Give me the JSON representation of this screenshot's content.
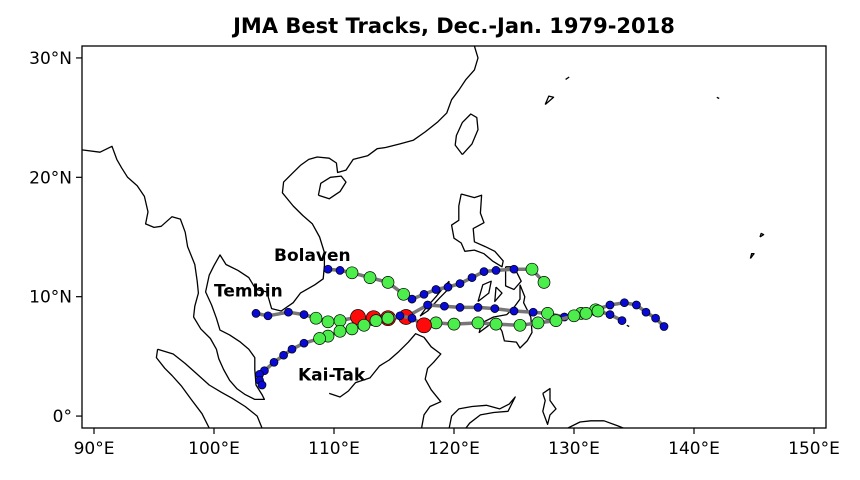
{
  "title": "JMA Best Tracks, Dec.-Jan. 1979-2018",
  "map": {
    "lon_range": [
      89,
      151
    ],
    "lat_range": [
      -1,
      31
    ],
    "x_ticks": [
      {
        "lon": 90,
        "label": "90°E"
      },
      {
        "lon": 100,
        "label": "100°E"
      },
      {
        "lon": 110,
        "label": "110°E"
      },
      {
        "lon": 120,
        "label": "120°E"
      },
      {
        "lon": 130,
        "label": "130°E"
      },
      {
        "lon": 140,
        "label": "140°E"
      },
      {
        "lon": 150,
        "label": "150°E"
      }
    ],
    "y_ticks": [
      {
        "lat": 0,
        "label": "0°"
      },
      {
        "lat": 10,
        "label": "10°N"
      },
      {
        "lat": 20,
        "label": "20°N"
      },
      {
        "lat": 30,
        "label": "30°N"
      }
    ]
  },
  "legend_colors": {
    "blue": "#0a0ad6",
    "green": "#4cee4c",
    "red": "#ff0a0a",
    "track_line": "#777777"
  },
  "storms": [
    {
      "name": "Bolaven",
      "label_at": [
        105.0,
        13.0
      ],
      "track": [
        [
          127.5,
          11.2,
          "g"
        ],
        [
          126.5,
          12.3,
          "g"
        ],
        [
          125.0,
          12.3,
          "b"
        ],
        [
          123.5,
          12.2,
          "b"
        ],
        [
          122.5,
          12.1,
          "b"
        ],
        [
          121.5,
          11.6,
          "b"
        ],
        [
          120.5,
          11.1,
          "b"
        ],
        [
          119.5,
          10.8,
          "b"
        ],
        [
          118.5,
          10.6,
          "b"
        ],
        [
          117.5,
          10.2,
          "b"
        ],
        [
          116.5,
          9.8,
          "b"
        ],
        [
          115.8,
          10.2,
          "g"
        ],
        [
          114.5,
          11.2,
          "g"
        ],
        [
          113.0,
          11.6,
          "g"
        ],
        [
          111.5,
          12.0,
          "g"
        ],
        [
          110.5,
          12.2,
          "b"
        ],
        [
          109.5,
          12.3,
          "b"
        ]
      ]
    },
    {
      "name": "Tembin",
      "label_at": [
        100.0,
        10.0
      ],
      "track": [
        [
          137.5,
          7.5,
          "b"
        ],
        [
          136.8,
          8.2,
          "b"
        ],
        [
          136.0,
          8.7,
          "b"
        ],
        [
          135.2,
          9.3,
          "b"
        ],
        [
          134.2,
          9.5,
          "b"
        ],
        [
          133.0,
          9.3,
          "b"
        ],
        [
          131.8,
          8.9,
          "g"
        ],
        [
          130.6,
          8.6,
          "g"
        ],
        [
          129.2,
          8.3,
          "b"
        ],
        [
          127.8,
          8.6,
          "g"
        ],
        [
          126.6,
          8.7,
          "b"
        ],
        [
          125.0,
          8.8,
          "b"
        ],
        [
          123.4,
          9.0,
          "b"
        ],
        [
          122.0,
          9.1,
          "b"
        ],
        [
          120.5,
          9.1,
          "b"
        ],
        [
          119.2,
          9.2,
          "b"
        ],
        [
          117.8,
          9.3,
          "b"
        ],
        [
          116.0,
          8.3,
          "r"
        ],
        [
          114.5,
          8.2,
          "r"
        ],
        [
          113.3,
          8.2,
          "r"
        ],
        [
          112.0,
          8.3,
          "r"
        ],
        [
          110.5,
          8.0,
          "g"
        ],
        [
          109.5,
          7.9,
          "g"
        ],
        [
          108.5,
          8.2,
          "g"
        ],
        [
          107.5,
          8.5,
          "b"
        ],
        [
          106.2,
          8.7,
          "b"
        ],
        [
          104.5,
          8.4,
          "b"
        ],
        [
          103.5,
          8.6,
          "b"
        ]
      ]
    },
    {
      "name": "Kai-Tak",
      "label_at": [
        107.0,
        3.0
      ],
      "track": [
        [
          134.0,
          8.0,
          "b"
        ],
        [
          133.0,
          8.5,
          "b"
        ],
        [
          132.0,
          8.8,
          "g"
        ],
        [
          131.0,
          8.6,
          "g"
        ],
        [
          130.0,
          8.4,
          "g"
        ],
        [
          128.5,
          8.0,
          "g"
        ],
        [
          127.0,
          7.8,
          "g"
        ],
        [
          125.5,
          7.6,
          "g"
        ],
        [
          123.5,
          7.7,
          "g"
        ],
        [
          122.0,
          7.8,
          "g"
        ],
        [
          120.0,
          7.7,
          "g"
        ],
        [
          118.5,
          7.8,
          "g"
        ],
        [
          117.5,
          7.6,
          "r"
        ],
        [
          116.5,
          8.2,
          "b"
        ],
        [
          115.5,
          8.4,
          "b"
        ],
        [
          114.5,
          8.2,
          "g"
        ],
        [
          113.5,
          8.0,
          "g"
        ],
        [
          112.5,
          7.6,
          "g"
        ],
        [
          111.5,
          7.3,
          "g"
        ],
        [
          110.5,
          7.1,
          "g"
        ],
        [
          109.5,
          6.7,
          "g"
        ],
        [
          108.8,
          6.5,
          "g"
        ],
        [
          107.5,
          6.1,
          "b"
        ],
        [
          106.5,
          5.6,
          "b"
        ],
        [
          105.8,
          5.1,
          "b"
        ],
        [
          105.0,
          4.5,
          "b"
        ],
        [
          104.2,
          3.8,
          "b"
        ],
        [
          103.8,
          3.5,
          "b"
        ],
        [
          103.8,
          3.0,
          "b"
        ],
        [
          104.0,
          2.6,
          "b"
        ]
      ]
    }
  ],
  "land_outlines": [
    [
      [
        89,
        22.3
      ],
      [
        90.5,
        22.1
      ],
      [
        91.5,
        22.6
      ],
      [
        91.9,
        21.5
      ],
      [
        92.3,
        20.8
      ],
      [
        92.8,
        20.0
      ],
      [
        93.6,
        19.3
      ],
      [
        94.2,
        18.4
      ],
      [
        94.5,
        17.1
      ],
      [
        94.3,
        16.1
      ],
      [
        95.0,
        15.8
      ],
      [
        95.6,
        15.9
      ],
      [
        96.5,
        16.7
      ],
      [
        97.2,
        16.5
      ],
      [
        97.6,
        15.4
      ],
      [
        97.8,
        14.2
      ],
      [
        98.4,
        12.7
      ],
      [
        98.6,
        11.3
      ],
      [
        98.7,
        10.3
      ],
      [
        98.4,
        9.2
      ],
      [
        98.3,
        8.3
      ],
      [
        98.9,
        7.3
      ],
      [
        99.7,
        6.5
      ],
      [
        100.2,
        5.6
      ],
      [
        100.4,
        4.8
      ],
      [
        100.8,
        3.9
      ],
      [
        101.3,
        3.0
      ],
      [
        101.9,
        2.3
      ],
      [
        102.6,
        1.8
      ],
      [
        103.4,
        1.4
      ],
      [
        104.2,
        1.4
      ],
      [
        104.0,
        1.8
      ],
      [
        103.5,
        2.6
      ],
      [
        103.4,
        3.9
      ],
      [
        103.4,
        4.9
      ],
      [
        102.9,
        5.6
      ],
      [
        102.2,
        6.2
      ],
      [
        101.3,
        6.8
      ],
      [
        100.5,
        7.2
      ],
      [
        100.2,
        8.2
      ],
      [
        99.8,
        9.3
      ],
      [
        99.3,
        10.4
      ],
      [
        99.6,
        11.8
      ],
      [
        100.0,
        12.6
      ],
      [
        100.5,
        13.5
      ],
      [
        101.0,
        12.7
      ],
      [
        102.0,
        12.2
      ],
      [
        102.9,
        11.6
      ],
      [
        103.5,
        10.6
      ],
      [
        104.4,
        10.4
      ],
      [
        104.8,
        9.0
      ],
      [
        105.6,
        8.8
      ],
      [
        106.6,
        9.5
      ],
      [
        107.2,
        10.3
      ],
      [
        108.4,
        11.0
      ],
      [
        109.1,
        11.5
      ],
      [
        109.2,
        12.6
      ],
      [
        109.2,
        13.7
      ],
      [
        108.8,
        15.0
      ],
      [
        108.2,
        16.1
      ],
      [
        107.4,
        16.8
      ],
      [
        106.6,
        17.6
      ],
      [
        105.7,
        18.7
      ],
      [
        105.8,
        19.6
      ],
      [
        106.5,
        20.3
      ],
      [
        107.2,
        21.0
      ],
      [
        107.9,
        21.5
      ],
      [
        108.6,
        21.7
      ],
      [
        109.6,
        21.6
      ],
      [
        110.2,
        21.2
      ],
      [
        110.3,
        20.4
      ],
      [
        111.0,
        20.6
      ],
      [
        111.6,
        21.5
      ],
      [
        112.8,
        21.8
      ],
      [
        113.6,
        22.4
      ],
      [
        114.3,
        22.5
      ],
      [
        115.5,
        22.8
      ],
      [
        116.6,
        23.1
      ],
      [
        117.6,
        23.8
      ],
      [
        118.6,
        24.6
      ],
      [
        119.4,
        25.4
      ],
      [
        119.8,
        26.5
      ],
      [
        120.4,
        27.3
      ],
      [
        121.0,
        28.2
      ],
      [
        121.7,
        29.0
      ],
      [
        122.0,
        30.0
      ],
      [
        121.7,
        31.0
      ]
    ],
    [
      [
        108.7,
        18.5
      ],
      [
        109.6,
        18.2
      ],
      [
        110.5,
        18.8
      ],
      [
        111.0,
        19.6
      ],
      [
        110.6,
        20.1
      ],
      [
        109.7,
        20.0
      ],
      [
        108.9,
        19.5
      ],
      [
        108.7,
        18.5
      ]
    ],
    [
      [
        120.7,
        21.9
      ],
      [
        121.5,
        22.8
      ],
      [
        122.0,
        24.0
      ],
      [
        121.9,
        25.0
      ],
      [
        121.4,
        25.3
      ],
      [
        120.7,
        24.6
      ],
      [
        120.2,
        23.5
      ],
      [
        120.1,
        22.7
      ],
      [
        120.7,
        21.9
      ]
    ],
    [
      [
        120.6,
        18.6
      ],
      [
        121.7,
        18.3
      ],
      [
        122.3,
        18.5
      ],
      [
        122.2,
        17.0
      ],
      [
        122.5,
        16.2
      ],
      [
        121.6,
        15.7
      ],
      [
        121.7,
        14.6
      ],
      [
        122.6,
        14.2
      ],
      [
        123.4,
        13.8
      ],
      [
        124.1,
        13.0
      ],
      [
        124.0,
        12.5
      ],
      [
        123.2,
        13.0
      ],
      [
        122.5,
        13.6
      ],
      [
        121.7,
        13.9
      ],
      [
        120.9,
        13.8
      ],
      [
        120.6,
        14.5
      ],
      [
        120.0,
        14.9
      ],
      [
        119.8,
        16.0
      ],
      [
        120.4,
        16.4
      ],
      [
        120.4,
        17.6
      ],
      [
        120.6,
        18.6
      ]
    ],
    [
      [
        125.5,
        11.0
      ],
      [
        125.9,
        10.0
      ],
      [
        125.8,
        9.5
      ],
      [
        126.4,
        8.3
      ],
      [
        126.5,
        7.0
      ],
      [
        126.1,
        6.3
      ],
      [
        125.5,
        5.7
      ],
      [
        125.2,
        6.2
      ],
      [
        124.2,
        6.3
      ],
      [
        124.0,
        7.1
      ],
      [
        123.6,
        7.8
      ],
      [
        122.9,
        7.6
      ],
      [
        122.1,
        7.0
      ],
      [
        122.3,
        7.8
      ],
      [
        123.3,
        8.3
      ],
      [
        124.4,
        8.5
      ],
      [
        125.0,
        9.1
      ],
      [
        125.5,
        9.8
      ],
      [
        125.5,
        11.0
      ]
    ],
    [
      [
        124.3,
        12.5
      ],
      [
        125.0,
        12.5
      ],
      [
        125.6,
        11.3
      ],
      [
        125.0,
        10.6
      ],
      [
        124.3,
        10.9
      ],
      [
        124.3,
        12.5
      ]
    ],
    [
      [
        119.6,
        11.3
      ],
      [
        119.4,
        10.5
      ],
      [
        118.8,
        9.9
      ],
      [
        117.8,
        8.8
      ],
      [
        117.2,
        8.4
      ],
      [
        117.7,
        9.1
      ],
      [
        118.5,
        10.0
      ],
      [
        119.3,
        11.0
      ],
      [
        119.6,
        11.3
      ]
    ],
    [
      [
        109.6,
        1.9
      ],
      [
        110.5,
        1.6
      ],
      [
        111.2,
        2.1
      ],
      [
        111.8,
        2.8
      ],
      [
        113.0,
        3.2
      ],
      [
        113.8,
        4.2
      ],
      [
        114.6,
        4.7
      ],
      [
        115.4,
        5.4
      ],
      [
        116.2,
        6.2
      ],
      [
        116.8,
        6.9
      ],
      [
        117.5,
        6.6
      ],
      [
        118.1,
        5.8
      ],
      [
        118.9,
        5.2
      ],
      [
        118.3,
        4.5
      ],
      [
        117.8,
        4.0
      ],
      [
        117.6,
        3.1
      ],
      [
        118.1,
        2.2
      ],
      [
        118.9,
        1.2
      ],
      [
        118.0,
        0.8
      ],
      [
        117.5,
        0.1
      ],
      [
        117.3,
        -1.0
      ]
    ],
    [
      [
        95.3,
        5.6
      ],
      [
        96.6,
        5.2
      ],
      [
        97.6,
        4.4
      ],
      [
        98.5,
        3.6
      ],
      [
        99.6,
        2.6
      ],
      [
        100.6,
        2.0
      ],
      [
        101.5,
        1.5
      ],
      [
        102.6,
        0.8
      ],
      [
        103.6,
        0.0
      ],
      [
        104.0,
        -1.0
      ]
    ],
    [
      [
        95.3,
        5.6
      ],
      [
        95.2,
        4.9
      ],
      [
        95.9,
        4.0
      ],
      [
        96.5,
        3.4
      ],
      [
        97.3,
        2.5
      ],
      [
        98.1,
        1.4
      ],
      [
        99.0,
        0.2
      ],
      [
        99.6,
        -1.0
      ]
    ],
    [
      [
        119.6,
        -1.0
      ],
      [
        119.8,
        0.0
      ],
      [
        120.4,
        0.6
      ],
      [
        121.5,
        0.8
      ],
      [
        122.7,
        0.9
      ],
      [
        123.8,
        0.6
      ],
      [
        124.6,
        1.0
      ],
      [
        125.1,
        1.6
      ],
      [
        124.5,
        0.4
      ],
      [
        123.3,
        0.3
      ],
      [
        122.2,
        0.1
      ],
      [
        121.3,
        -0.6
      ],
      [
        121.0,
        -1.0
      ]
    ],
    [
      [
        127.4,
        1.9
      ],
      [
        128.0,
        2.3
      ],
      [
        128.0,
        1.3
      ],
      [
        128.5,
        0.6
      ],
      [
        128.0,
        0.1
      ],
      [
        127.8,
        -0.7
      ],
      [
        127.4,
        0.4
      ],
      [
        127.6,
        1.3
      ],
      [
        127.4,
        1.9
      ]
    ],
    [
      [
        129.5,
        -1.0
      ],
      [
        130.5,
        -0.5
      ],
      [
        131.4,
        -0.4
      ],
      [
        132.5,
        -0.4
      ],
      [
        133.6,
        -0.8
      ],
      [
        134.1,
        -1.0
      ]
    ],
    [
      [
        134.4,
        7.6
      ],
      [
        134.6,
        7.5
      ]
    ],
    [
      [
        141.9,
        26.7
      ],
      [
        142.1,
        26.6
      ]
    ],
    [
      [
        144.7,
        13.2
      ],
      [
        145.0,
        13.6
      ],
      [
        144.8,
        13.6
      ],
      [
        144.7,
        13.2
      ]
    ],
    [
      [
        145.5,
        15.0
      ],
      [
        145.8,
        15.2
      ],
      [
        145.6,
        15.3
      ],
      [
        145.5,
        15.0
      ]
    ],
    [
      [
        127.6,
        26.1
      ],
      [
        128.3,
        26.7
      ],
      [
        127.9,
        26.8
      ],
      [
        127.6,
        26.1
      ]
    ],
    [
      [
        129.3,
        28.2
      ],
      [
        129.6,
        28.4
      ]
    ],
    [
      [
        122.0,
        9.6
      ],
      [
        122.9,
        10.3
      ],
      [
        123.1,
        11.3
      ],
      [
        122.4,
        11.0
      ],
      [
        122.0,
        9.6
      ]
    ],
    [
      [
        123.5,
        10.8
      ],
      [
        124.0,
        10.3
      ],
      [
        123.4,
        9.6
      ],
      [
        123.5,
        10.8
      ]
    ]
  ]
}
